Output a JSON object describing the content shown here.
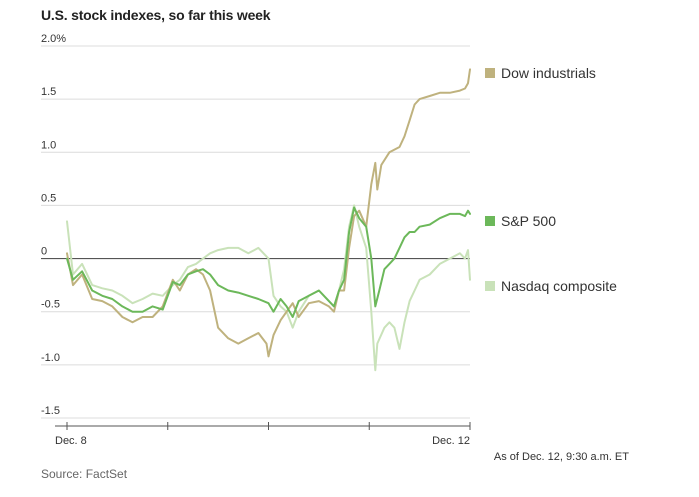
{
  "chart_data": {
    "type": "line",
    "title": "U.S. stock indexes, so far this week",
    "xlabel": "",
    "ylabel": "",
    "ylim": [
      -1.5,
      2.0
    ],
    "y_ticks": [
      {
        "value": 2.0,
        "label": "2.0%"
      },
      {
        "value": 1.5,
        "label": "1.5"
      },
      {
        "value": 1.0,
        "label": "1.0"
      },
      {
        "value": 0.5,
        "label": "0.5"
      },
      {
        "value": 0,
        "label": "0"
      },
      {
        "value": -0.5,
        "label": "-0.5"
      },
      {
        "value": -1.0,
        "label": "-1.0"
      },
      {
        "value": -1.5,
        "label": "-1.5"
      }
    ],
    "x_range": [
      0,
      4
    ],
    "x_day_boundaries": [
      0,
      1,
      2,
      3,
      4
    ],
    "x_tick_labels": [
      {
        "x": 0,
        "label": "Dec. 8"
      },
      {
        "x": 4,
        "label": "Dec. 12"
      }
    ],
    "series": [
      {
        "name": "Dow industrials",
        "color": "#bfb27e",
        "points": [
          [
            0,
            0.05
          ],
          [
            0.06,
            -0.25
          ],
          [
            0.15,
            -0.15
          ],
          [
            0.25,
            -0.38
          ],
          [
            0.35,
            -0.4
          ],
          [
            0.45,
            -0.45
          ],
          [
            0.55,
            -0.55
          ],
          [
            0.65,
            -0.6
          ],
          [
            0.75,
            -0.55
          ],
          [
            0.85,
            -0.55
          ],
          [
            0.95,
            -0.45
          ],
          [
            1.05,
            -0.2
          ],
          [
            1.12,
            -0.3
          ],
          [
            1.2,
            -0.15
          ],
          [
            1.28,
            -0.1
          ],
          [
            1.35,
            -0.15
          ],
          [
            1.42,
            -0.3
          ],
          [
            1.5,
            -0.65
          ],
          [
            1.6,
            -0.75
          ],
          [
            1.7,
            -0.8
          ],
          [
            1.8,
            -0.75
          ],
          [
            1.9,
            -0.7
          ],
          [
            1.98,
            -0.8
          ],
          [
            2.0,
            -0.92
          ],
          [
            2.05,
            -0.72
          ],
          [
            2.12,
            -0.58
          ],
          [
            2.18,
            -0.5
          ],
          [
            2.24,
            -0.42
          ],
          [
            2.3,
            -0.55
          ],
          [
            2.4,
            -0.42
          ],
          [
            2.5,
            -0.4
          ],
          [
            2.6,
            -0.45
          ],
          [
            2.65,
            -0.5
          ],
          [
            2.7,
            -0.3
          ],
          [
            2.75,
            -0.3
          ],
          [
            2.8,
            0.1
          ],
          [
            2.85,
            0.4
          ],
          [
            2.9,
            0.45
          ],
          [
            2.97,
            0.3
          ],
          [
            3.02,
            0.7
          ],
          [
            3.06,
            0.9
          ],
          [
            3.08,
            0.65
          ],
          [
            3.12,
            0.88
          ],
          [
            3.2,
            1.0
          ],
          [
            3.3,
            1.05
          ],
          [
            3.35,
            1.15
          ],
          [
            3.4,
            1.3
          ],
          [
            3.45,
            1.45
          ],
          [
            3.5,
            1.5
          ],
          [
            3.6,
            1.53
          ],
          [
            3.7,
            1.56
          ],
          [
            3.8,
            1.56
          ],
          [
            3.9,
            1.58
          ],
          [
            3.95,
            1.6
          ],
          [
            3.98,
            1.65
          ],
          [
            4.0,
            1.78
          ]
        ]
      },
      {
        "name": "S&P 500",
        "color": "#6cb85a",
        "points": [
          [
            0,
            0.0
          ],
          [
            0.06,
            -0.2
          ],
          [
            0.15,
            -0.12
          ],
          [
            0.25,
            -0.3
          ],
          [
            0.35,
            -0.35
          ],
          [
            0.45,
            -0.38
          ],
          [
            0.55,
            -0.45
          ],
          [
            0.65,
            -0.5
          ],
          [
            0.75,
            -0.5
          ],
          [
            0.85,
            -0.45
          ],
          [
            0.95,
            -0.48
          ],
          [
            1.05,
            -0.22
          ],
          [
            1.12,
            -0.25
          ],
          [
            1.2,
            -0.15
          ],
          [
            1.28,
            -0.12
          ],
          [
            1.35,
            -0.1
          ],
          [
            1.42,
            -0.15
          ],
          [
            1.5,
            -0.25
          ],
          [
            1.6,
            -0.3
          ],
          [
            1.7,
            -0.32
          ],
          [
            1.8,
            -0.35
          ],
          [
            1.9,
            -0.38
          ],
          [
            2.0,
            -0.42
          ],
          [
            2.05,
            -0.5
          ],
          [
            2.12,
            -0.38
          ],
          [
            2.18,
            -0.45
          ],
          [
            2.24,
            -0.55
          ],
          [
            2.3,
            -0.4
          ],
          [
            2.4,
            -0.35
          ],
          [
            2.5,
            -0.3
          ],
          [
            2.6,
            -0.4
          ],
          [
            2.65,
            -0.45
          ],
          [
            2.7,
            -0.3
          ],
          [
            2.75,
            -0.2
          ],
          [
            2.8,
            0.25
          ],
          [
            2.85,
            0.48
          ],
          [
            2.9,
            0.38
          ],
          [
            2.97,
            0.3
          ],
          [
            3.02,
            0.0
          ],
          [
            3.06,
            -0.45
          ],
          [
            3.1,
            -0.3
          ],
          [
            3.15,
            -0.1
          ],
          [
            3.2,
            -0.05
          ],
          [
            3.25,
            0.0
          ],
          [
            3.3,
            0.1
          ],
          [
            3.35,
            0.2
          ],
          [
            3.4,
            0.25
          ],
          [
            3.45,
            0.25
          ],
          [
            3.5,
            0.3
          ],
          [
            3.6,
            0.32
          ],
          [
            3.7,
            0.38
          ],
          [
            3.8,
            0.42
          ],
          [
            3.9,
            0.42
          ],
          [
            3.95,
            0.4
          ],
          [
            3.98,
            0.45
          ],
          [
            4.0,
            0.42
          ]
        ]
      },
      {
        "name": "Nasdaq composite",
        "color": "#c9e2b9",
        "points": [
          [
            0,
            0.35
          ],
          [
            0.06,
            -0.15
          ],
          [
            0.15,
            -0.05
          ],
          [
            0.25,
            -0.25
          ],
          [
            0.35,
            -0.28
          ],
          [
            0.45,
            -0.3
          ],
          [
            0.55,
            -0.35
          ],
          [
            0.65,
            -0.42
          ],
          [
            0.75,
            -0.38
          ],
          [
            0.85,
            -0.33
          ],
          [
            0.95,
            -0.35
          ],
          [
            1.05,
            -0.25
          ],
          [
            1.12,
            -0.2
          ],
          [
            1.2,
            -0.08
          ],
          [
            1.28,
            -0.05
          ],
          [
            1.35,
            0.0
          ],
          [
            1.42,
            0.05
          ],
          [
            1.5,
            0.08
          ],
          [
            1.6,
            0.1
          ],
          [
            1.7,
            0.1
          ],
          [
            1.8,
            0.05
          ],
          [
            1.9,
            0.1
          ],
          [
            2.0,
            0.0
          ],
          [
            2.05,
            -0.35
          ],
          [
            2.12,
            -0.45
          ],
          [
            2.18,
            -0.5
          ],
          [
            2.24,
            -0.65
          ],
          [
            2.3,
            -0.5
          ],
          [
            2.4,
            -0.35
          ],
          [
            2.5,
            -0.3
          ],
          [
            2.6,
            -0.4
          ],
          [
            2.65,
            -0.45
          ],
          [
            2.7,
            -0.3
          ],
          [
            2.75,
            -0.1
          ],
          [
            2.8,
            0.3
          ],
          [
            2.85,
            0.5
          ],
          [
            2.9,
            0.3
          ],
          [
            2.97,
            0.1
          ],
          [
            3.02,
            -0.5
          ],
          [
            3.06,
            -1.05
          ],
          [
            3.08,
            -0.8
          ],
          [
            3.15,
            -0.65
          ],
          [
            3.2,
            -0.6
          ],
          [
            3.25,
            -0.65
          ],
          [
            3.3,
            -0.85
          ],
          [
            3.35,
            -0.6
          ],
          [
            3.4,
            -0.4
          ],
          [
            3.45,
            -0.3
          ],
          [
            3.5,
            -0.2
          ],
          [
            3.6,
            -0.15
          ],
          [
            3.7,
            -0.05
          ],
          [
            3.8,
            0.0
          ],
          [
            3.9,
            0.05
          ],
          [
            3.95,
            0.0
          ],
          [
            3.98,
            0.08
          ],
          [
            4.0,
            -0.2
          ]
        ]
      }
    ],
    "legend": [
      {
        "name": "Dow industrials",
        "color": "#bfb27e",
        "y_value": 1.78
      },
      {
        "name": "S&P 500",
        "color": "#6cb85a",
        "y_value": 0.42
      },
      {
        "name": "Nasdaq composite",
        "color": "#c9e2b9",
        "y_value": -0.2
      }
    ]
  },
  "footer": {
    "as_of": "As of Dec. 12, 9:30 a.m. ET",
    "source": "Source: FactSet"
  }
}
